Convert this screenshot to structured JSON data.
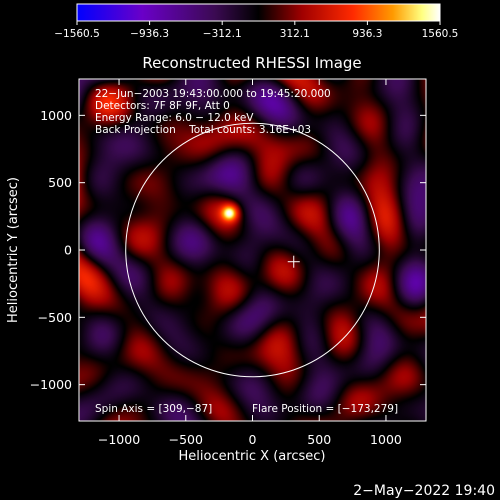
{
  "chart_data": {
    "type": "heatmap",
    "title": "Reconstructed RHESSI Image",
    "xlabel": "Heliocentric X (arcsec)",
    "ylabel": "Heliocentric Y (arcsec)",
    "xlim": [
      -1300,
      1300
    ],
    "ylim": [
      -1270,
      1270
    ],
    "xticks": [
      -1000,
      -500,
      0,
      500,
      1000
    ],
    "xtick_labels": [
      "−1000",
      "−500",
      "0",
      "500",
      "1000"
    ],
    "yticks": [
      -1000,
      -500,
      0,
      500,
      1000
    ],
    "ytick_labels": [
      "−1000",
      "−500",
      "0",
      "500",
      "1000"
    ],
    "colorbar": {
      "range": [
        -1560.5,
        1560.5
      ],
      "ticks": [
        -1560.5,
        -936.3,
        -312.1,
        312.1,
        936.3,
        1560.5
      ],
      "tick_labels": [
        "−1560.5",
        "−936.3",
        "−312.1",
        "312.1",
        "936.3",
        "1560.5"
      ],
      "colors": [
        "#0000ff",
        "#6a00c8",
        "#3b0a52",
        "#000000",
        "#a00000",
        "#ff2a00",
        "#ff9a00",
        "#ffff80",
        "#ffffff"
      ]
    },
    "info_lines": [
      "22−Jun−2003 19:43:00.000 to 19:45:20.000",
      "Detectors: 7F 8F 9F, Att 0",
      "Energy Range: 6.0 − 12.0 keV",
      "Back Projection    Total counts: 3.16E+03"
    ],
    "spin_axis_label": "Spin Axis = [309,−87]",
    "flare_position_label": "Flare Position = [−173,279]",
    "solar_limb": {
      "center": [
        0,
        0
      ],
      "radius_arcsec": 950
    },
    "spin_axis": [
      309,
      -87
    ],
    "flare_position": [
      -173,
      279
    ]
  },
  "footer": {
    "timestamp": "2−May−2022 19:40"
  }
}
